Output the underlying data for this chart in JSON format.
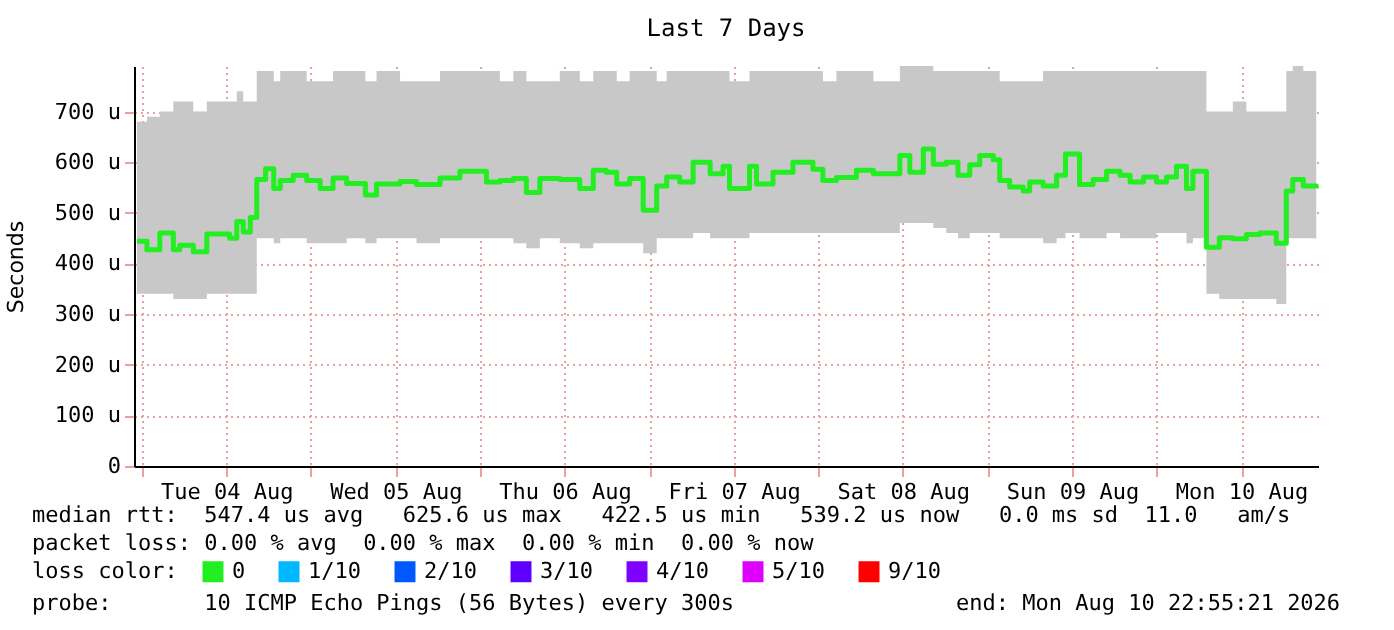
{
  "chart_data": {
    "type": "step",
    "title": "Last 7 Days",
    "ylabel": "Seconds",
    "legend_title": "loss color:",
    "legend": "bottom",
    "grid": true,
    "xlim": [
      "2026-08-03T22:55",
      "2026-08-10T22:55"
    ],
    "xticks": [
      {
        "value": "2026-08-04T00:00",
        "label": null
      },
      {
        "value": "2026-08-04T12:00",
        "label": "Tue 04 Aug"
      },
      {
        "value": "2026-08-05T00:00",
        "label": null
      },
      {
        "value": "2026-08-05T12:00",
        "label": "Wed 05 Aug"
      },
      {
        "value": "2026-08-06T00:00",
        "label": null
      },
      {
        "value": "2026-08-06T12:00",
        "label": "Thu 06 Aug"
      },
      {
        "value": "2026-08-07T00:00",
        "label": null
      },
      {
        "value": "2026-08-07T12:00",
        "label": "Fri 07 Aug"
      },
      {
        "value": "2026-08-08T00:00",
        "label": null
      },
      {
        "value": "2026-08-08T12:00",
        "label": "Sat 08 Aug"
      },
      {
        "value": "2026-08-09T00:00",
        "label": null
      },
      {
        "value": "2026-08-09T12:00",
        "label": "Sun 09 Aug"
      },
      {
        "value": "2026-08-10T00:00",
        "label": null
      },
      {
        "value": "2026-08-10T12:00",
        "label": "Mon 10 Aug"
      }
    ],
    "ylim": [
      0,
      790
    ],
    "yticks": [
      0,
      {
        "value": 100,
        "label": "100 u"
      },
      {
        "value": 200,
        "label": "200 u"
      },
      {
        "value": 300,
        "label": "300 u"
      },
      {
        "value": 400,
        "label": "400 u"
      },
      {
        "value": 500,
        "label": "500 u"
      },
      {
        "value": 600,
        "label": "600 u"
      },
      {
        "value": 700,
        "label": "700 u"
      }
    ],
    "x": [
      "2026-08-03T23:20",
      "2026-08-04T00:45",
      "2026-08-04T02:35",
      "2026-08-04T04:30",
      "2026-08-04T05:25",
      "2026-08-04T07:20",
      "2026-08-04T09:15",
      "2026-08-04T11:05",
      "2026-08-04T12:30",
      "2026-08-04T13:30",
      "2026-08-04T14:25",
      "2026-08-04T15:25",
      "2026-08-04T16:20",
      "2026-08-04T17:35",
      "2026-08-04T18:45",
      "2026-08-04T19:40",
      "2026-08-04T21:30",
      "2026-08-04T23:25",
      "2026-08-05T01:20",
      "2026-08-05T03:10",
      "2026-08-05T05:05",
      "2026-08-05T07:45",
      "2026-08-05T09:20",
      "2026-08-05T12:40",
      "2026-08-05T15:00",
      "2026-08-05T18:20",
      "2026-08-05T21:10",
      "2026-08-06T00:55",
      "2026-08-06T02:50",
      "2026-08-06T04:45",
      "2026-08-06T06:35",
      "2026-08-06T08:30",
      "2026-08-06T11:20",
      "2026-08-06T14:10",
      "2026-08-06T16:05",
      "2026-08-06T17:55",
      "2026-08-06T19:25",
      "2026-08-06T21:15",
      "2026-08-06T23:10",
      "2026-08-07T01:05",
      "2026-08-07T02:30",
      "2026-08-07T04:20",
      "2026-08-07T06:15",
      "2026-08-07T08:40",
      "2026-08-07T10:30",
      "2026-08-07T11:25",
      "2026-08-07T14:15",
      "2026-08-07T15:15",
      "2026-08-07T17:35",
      "2026-08-07T20:25",
      "2026-08-07T23:15",
      "2026-08-08T00:40",
      "2026-08-08T02:35",
      "2026-08-08T05:25",
      "2026-08-08T07:50",
      "2026-08-08T11:35",
      "2026-08-08T13:00",
      "2026-08-08T14:55",
      "2026-08-08T16:20",
      "2026-08-08T18:10",
      "2026-08-08T19:50",
      "2026-08-08T21:30",
      "2026-08-08T22:55",
      "2026-08-09T00:50",
      "2026-08-09T01:45",
      "2026-08-09T03:10",
      "2026-08-09T05:05",
      "2026-08-09T06:00",
      "2026-08-09T07:55",
      "2026-08-09T09:50",
      "2026-08-09T11:05",
      "2026-08-09T13:05",
      "2026-08-09T15:00",
      "2026-08-09T16:55",
      "2026-08-09T18:50",
      "2026-08-09T20:15",
      "2026-08-09T22:10",
      "2026-08-10T00:00",
      "2026-08-10T01:25",
      "2026-08-10T02:50",
      "2026-08-10T04:15",
      "2026-08-10T05:10",
      "2026-08-10T07:05",
      "2026-08-10T08:55",
      "2026-08-10T10:50",
      "2026-08-10T12:45",
      "2026-08-10T14:40",
      "2026-08-10T17:00",
      "2026-08-10T18:25",
      "2026-08-10T19:20",
      "2026-08-10T20:50",
      "2026-08-10T22:40"
    ],
    "series": [
      {
        "name": "0",
        "color": "#22ee22",
        "values": [
          444,
          427,
          460,
          427,
          436,
          423,
          458,
          458,
          450,
          483,
          462,
          491,
          566,
          587,
          548,
          564,
          574,
          564,
          548,
          569,
          558,
          535,
          557,
          562,
          556,
          569,
          582,
          561,
          564,
          568,
          540,
          568,
          566,
          548,
          584,
          580,
          557,
          568,
          505,
          553,
          571,
          561,
          600,
          577,
          592,
          548,
          592,
          557,
          580,
          600,
          586,
          564,
          570,
          584,
          577,
          613,
          580,
          626,
          596,
          600,
          574,
          595,
          613,
          605,
          564,
          551,
          543,
          561,
          553,
          574,
          616,
          556,
          566,
          582,
          574,
          561,
          571,
          561,
          571,
          592,
          548,
          582,
          432,
          451,
          449,
          457,
          460,
          440,
          543,
          566,
          553,
          548
        ],
        "lower": [
          340,
          340,
          340,
          330,
          330,
          330,
          340,
          340,
          340,
          340,
          340,
          340,
          450,
          450,
          440,
          450,
          450,
          440,
          440,
          440,
          450,
          440,
          450,
          450,
          440,
          450,
          450,
          450,
          450,
          440,
          430,
          450,
          440,
          430,
          440,
          440,
          440,
          440,
          420,
          450,
          450,
          450,
          460,
          450,
          450,
          450,
          460,
          460,
          460,
          460,
          460,
          460,
          460,
          460,
          460,
          480,
          480,
          480,
          470,
          460,
          450,
          460,
          460,
          460,
          450,
          450,
          450,
          450,
          440,
          450,
          460,
          450,
          450,
          460,
          450,
          450,
          450,
          460,
          460,
          460,
          440,
          450,
          340,
          330,
          330,
          330,
          330,
          320,
          450,
          450,
          450,
          450
        ],
        "upper": [
          680,
          690,
          700,
          720,
          720,
          700,
          720,
          720,
          720,
          740,
          720,
          720,
          780,
          780,
          760,
          780,
          780,
          760,
          760,
          780,
          780,
          760,
          780,
          760,
          760,
          780,
          780,
          780,
          760,
          780,
          760,
          760,
          780,
          760,
          780,
          780,
          760,
          780,
          780,
          760,
          780,
          780,
          780,
          780,
          780,
          760,
          780,
          780,
          780,
          780,
          780,
          760,
          780,
          780,
          760,
          790,
          790,
          790,
          780,
          780,
          780,
          780,
          780,
          780,
          760,
          760,
          760,
          760,
          780,
          780,
          780,
          780,
          780,
          780,
          780,
          780,
          780,
          780,
          780,
          780,
          780,
          780,
          700,
          700,
          720,
          700,
          700,
          700,
          780,
          790,
          780,
          780
        ]
      },
      {
        "name": "1/10",
        "color": "#00b8ff",
        "values": [
          null,
          null,
          null,
          null,
          null,
          null,
          null,
          null,
          null,
          null,
          null,
          null,
          null,
          null,
          null,
          null,
          null,
          null,
          null,
          null,
          null,
          null,
          null,
          null,
          null,
          null,
          null,
          null,
          null,
          null,
          null,
          null,
          null,
          null,
          null,
          null,
          null,
          null,
          null,
          null,
          null,
          null,
          null,
          null,
          null,
          null,
          null,
          null,
          null,
          null,
          null,
          null,
          null,
          null,
          null,
          null,
          null,
          null,
          null,
          null,
          null,
          null,
          null,
          null,
          null,
          null,
          null,
          null,
          null,
          null,
          null,
          null,
          null,
          null,
          null,
          null,
          null,
          null,
          null,
          null,
          null,
          null,
          null,
          null,
          null,
          null,
          null,
          null,
          null,
          null,
          null,
          null
        ]
      },
      {
        "name": "2/10",
        "color": "#0059ff",
        "values": [
          null,
          null,
          null,
          null,
          null,
          null,
          null,
          null,
          null,
          null,
          null,
          null,
          null,
          null,
          null,
          null,
          null,
          null,
          null,
          null,
          null,
          null,
          null,
          null,
          null,
          null,
          null,
          null,
          null,
          null,
          null,
          null,
          null,
          null,
          null,
          null,
          null,
          null,
          null,
          null,
          null,
          null,
          null,
          null,
          null,
          null,
          null,
          null,
          null,
          null,
          null,
          null,
          null,
          null,
          null,
          null,
          null,
          null,
          null,
          null,
          null,
          null,
          null,
          null,
          null,
          null,
          null,
          null,
          null,
          null,
          null,
          null,
          null,
          null,
          null,
          null,
          null,
          null,
          null,
          null,
          null,
          null,
          null,
          null,
          null,
          null,
          null,
          null,
          null,
          null,
          null,
          null
        ]
      },
      {
        "name": "3/10",
        "color": "#5e00ff",
        "values": [
          null,
          null,
          null,
          null,
          null,
          null,
          null,
          null,
          null,
          null,
          null,
          null,
          null,
          null,
          null,
          null,
          null,
          null,
          null,
          null,
          null,
          null,
          null,
          null,
          null,
          null,
          null,
          null,
          null,
          null,
          null,
          null,
          null,
          null,
          null,
          null,
          null,
          null,
          null,
          null,
          null,
          null,
          null,
          null,
          null,
          null,
          null,
          null,
          null,
          null,
          null,
          null,
          null,
          null,
          null,
          null,
          null,
          null,
          null,
          null,
          null,
          null,
          null,
          null,
          null,
          null,
          null,
          null,
          null,
          null,
          null,
          null,
          null,
          null,
          null,
          null,
          null,
          null,
          null,
          null,
          null,
          null,
          null,
          null,
          null,
          null,
          null,
          null,
          null,
          null,
          null,
          null
        ]
      },
      {
        "name": "4/10",
        "color": "#7e00ff",
        "values": [
          null,
          null,
          null,
          null,
          null,
          null,
          null,
          null,
          null,
          null,
          null,
          null,
          null,
          null,
          null,
          null,
          null,
          null,
          null,
          null,
          null,
          null,
          null,
          null,
          null,
          null,
          null,
          null,
          null,
          null,
          null,
          null,
          null,
          null,
          null,
          null,
          null,
          null,
          null,
          null,
          null,
          null,
          null,
          null,
          null,
          null,
          null,
          null,
          null,
          null,
          null,
          null,
          null,
          null,
          null,
          null,
          null,
          null,
          null,
          null,
          null,
          null,
          null,
          null,
          null,
          null,
          null,
          null,
          null,
          null,
          null,
          null,
          null,
          null,
          null,
          null,
          null,
          null,
          null,
          null,
          null,
          null,
          null,
          null,
          null,
          null,
          null,
          null,
          null,
          null,
          null,
          null
        ]
      },
      {
        "name": "5/10",
        "color": "#dd00ff",
        "values": [
          null,
          null,
          null,
          null,
          null,
          null,
          null,
          null,
          null,
          null,
          null,
          null,
          null,
          null,
          null,
          null,
          null,
          null,
          null,
          null,
          null,
          null,
          null,
          null,
          null,
          null,
          null,
          null,
          null,
          null,
          null,
          null,
          null,
          null,
          null,
          null,
          null,
          null,
          null,
          null,
          null,
          null,
          null,
          null,
          null,
          null,
          null,
          null,
          null,
          null,
          null,
          null,
          null,
          null,
          null,
          null,
          null,
          null,
          null,
          null,
          null,
          null,
          null,
          null,
          null,
          null,
          null,
          null,
          null,
          null,
          null,
          null,
          null,
          null,
          null,
          null,
          null,
          null,
          null,
          null,
          null,
          null,
          null,
          null,
          null,
          null,
          null,
          null,
          null,
          null,
          null,
          null
        ]
      },
      {
        "name": "9/10",
        "color": "#ff0000",
        "values": [
          null,
          null,
          null,
          null,
          null,
          null,
          null,
          null,
          null,
          null,
          null,
          null,
          null,
          null,
          null,
          null,
          null,
          null,
          null,
          null,
          null,
          null,
          null,
          null,
          null,
          null,
          null,
          null,
          null,
          null,
          null,
          null,
          null,
          null,
          null,
          null,
          null,
          null,
          null,
          null,
          null,
          null,
          null,
          null,
          null,
          null,
          null,
          null,
          null,
          null,
          null,
          null,
          null,
          null,
          null,
          null,
          null,
          null,
          null,
          null,
          null,
          null,
          null,
          null,
          null,
          null,
          null,
          null,
          null,
          null,
          null,
          null,
          null,
          null,
          null,
          null,
          null,
          null,
          null,
          null,
          null,
          null,
          null,
          null,
          null,
          null,
          null,
          null,
          null,
          null,
          null,
          null
        ]
      }
    ],
    "annotations": [
      "median rtt:  547.4 us avg   625.6 us max   422.5 us min   539.2 us now   0.0 ms sd  11.0   am/s",
      "packet loss: 0.00 % avg  0.00 % max  0.00 % min  0.00 % now",
      "probe:       10 ICMP Echo Pings (56 Bytes) every 300s",
      "end: Mon Aug 10 22:55:21 2026"
    ]
  }
}
